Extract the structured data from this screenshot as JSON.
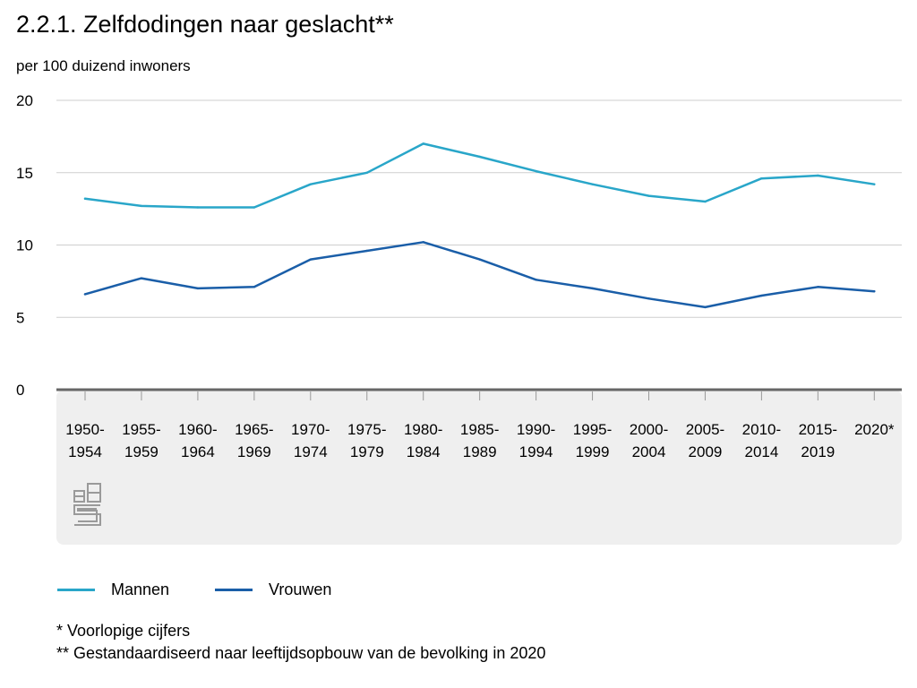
{
  "chart_data": {
    "type": "line",
    "title": "2.2.1. Zelfdodingen naar geslacht**",
    "ylabel": "per 100 duizend inwoners",
    "xlabel": "",
    "ylim": [
      0,
      20
    ],
    "yticks": [
      0,
      5,
      10,
      15,
      20
    ],
    "categories": [
      [
        "1950-",
        "1954"
      ],
      [
        "1955-",
        "1959"
      ],
      [
        "1960-",
        "1964"
      ],
      [
        "1965-",
        "1969"
      ],
      [
        "1970-",
        "1974"
      ],
      [
        "1975-",
        "1979"
      ],
      [
        "1980-",
        "1984"
      ],
      [
        "1985-",
        "1989"
      ],
      [
        "1990-",
        "1994"
      ],
      [
        "1995-",
        "1999"
      ],
      [
        "2000-",
        "2004"
      ],
      [
        "2005-",
        "2009"
      ],
      [
        "2010-",
        "2014"
      ],
      [
        "2015-",
        "2019"
      ],
      [
        "2020*",
        ""
      ]
    ],
    "series": [
      {
        "name": "Mannen",
        "color": "#29a6c9",
        "values": [
          13.2,
          12.7,
          12.6,
          12.6,
          14.2,
          15.0,
          17.0,
          16.1,
          15.1,
          14.2,
          13.4,
          13.0,
          14.6,
          14.8,
          14.2
        ]
      },
      {
        "name": "Vrouwen",
        "color": "#1a5ea8",
        "values": [
          6.6,
          7.7,
          7.0,
          7.1,
          9.0,
          9.6,
          10.2,
          9.0,
          7.6,
          7.0,
          6.3,
          5.7,
          6.5,
          7.1,
          6.8
        ]
      }
    ],
    "grid": true,
    "legend_position": "bottom-left"
  },
  "footnotes": [
    "* Voorlopige cijfers",
    "** Gestandaardiseerd naar leeftijdsopbouw van de bevolking in 2020"
  ],
  "logo": {
    "icon": "cbs-logo-icon"
  }
}
